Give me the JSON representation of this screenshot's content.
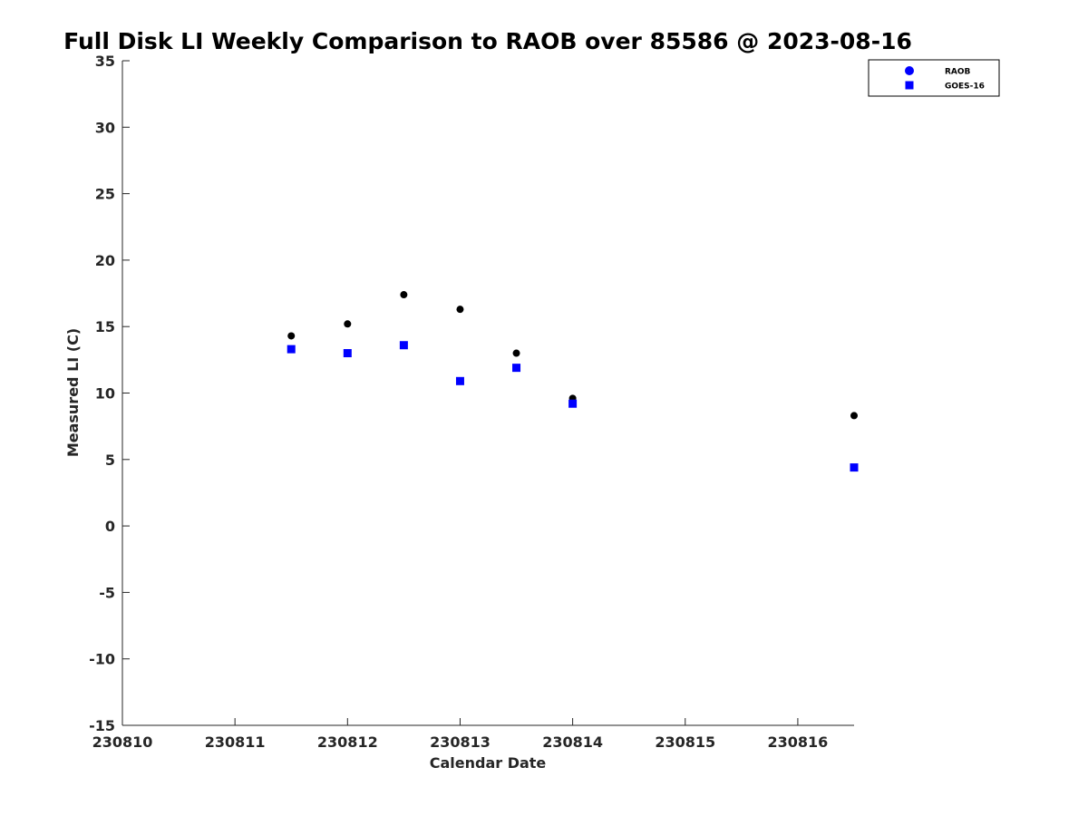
{
  "chart_data": {
    "type": "scatter",
    "title": "Full Disk LI Weekly Comparison to RAOB over 85586 @ 2023-08-16",
    "xlabel": "Calendar Date",
    "ylabel": "Measured LI (C)",
    "xlim": [
      230810,
      230816.5
    ],
    "ylim": [
      -15,
      35
    ],
    "xticks": [
      230810,
      230811,
      230812,
      230813,
      230814,
      230815,
      230816
    ],
    "xtick_labels": [
      "230810",
      "230811",
      "230812",
      "230813",
      "230814",
      "230815",
      "230816"
    ],
    "yticks": [
      35,
      30,
      25,
      20,
      15,
      10,
      5,
      0,
      -5,
      -10,
      -15
    ],
    "ytick_labels": [
      "35",
      "30",
      "25",
      "20",
      "15",
      "10",
      "5",
      "0",
      "-5",
      "-10",
      "-15"
    ],
    "grid": false,
    "legend_position": "top-right",
    "series": [
      {
        "name": "RAOB",
        "marker": "circle",
        "color": "#000000",
        "legend_color": "#0000ff",
        "x": [
          230811.5,
          230812,
          230812.5,
          230813,
          230813.5,
          230814,
          230816.5
        ],
        "y": [
          14.3,
          15.2,
          17.4,
          16.3,
          13.0,
          9.6,
          8.3
        ]
      },
      {
        "name": "GOES-16",
        "marker": "square",
        "color": "#0000ff",
        "legend_color": "#0000ff",
        "x": [
          230811.5,
          230812,
          230812.5,
          230813,
          230813.5,
          230814,
          230816.5
        ],
        "y": [
          13.3,
          13.0,
          13.6,
          10.9,
          11.9,
          9.2,
          4.4
        ]
      }
    ]
  }
}
